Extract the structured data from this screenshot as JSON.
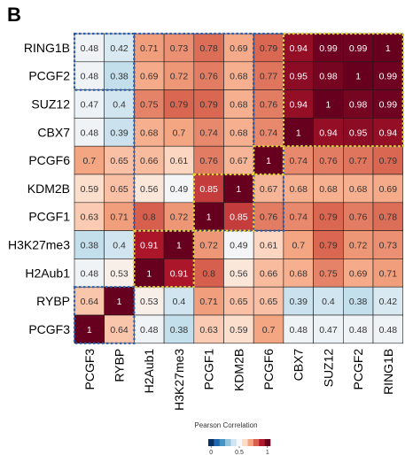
{
  "panel_label": "B",
  "chart_data": {
    "type": "heatmap",
    "rows": [
      "RING1B",
      "PCGF2",
      "SUZ12",
      "CBX7",
      "PCGF6",
      "KDM2B",
      "PCGF1",
      "H3K27me3",
      "H2Aub1",
      "RYBP",
      "PCGF3"
    ],
    "columns": [
      "PCGF3",
      "RYBP",
      "H2Aub1",
      "H3K27me3",
      "PCGF1",
      "KDM2B",
      "PCGF6",
      "CBX7",
      "SUZ12",
      "PCGF2",
      "RING1B"
    ],
    "values": [
      [
        0.48,
        0.42,
        0.71,
        0.73,
        0.78,
        0.69,
        0.79,
        0.94,
        0.99,
        0.99,
        1
      ],
      [
        0.48,
        0.38,
        0.69,
        0.72,
        0.76,
        0.68,
        0.77,
        0.95,
        0.98,
        1,
        0.99
      ],
      [
        0.47,
        0.4,
        0.75,
        0.79,
        0.79,
        0.68,
        0.76,
        0.94,
        1,
        0.98,
        0.99
      ],
      [
        0.48,
        0.39,
        0.68,
        0.7,
        0.74,
        0.68,
        0.74,
        1,
        0.94,
        0.95,
        0.94
      ],
      [
        0.7,
        0.65,
        0.66,
        0.61,
        0.76,
        0.67,
        1,
        0.74,
        0.76,
        0.77,
        0.79
      ],
      [
        0.59,
        0.65,
        0.56,
        0.49,
        0.85,
        1,
        0.67,
        0.68,
        0.68,
        0.68,
        0.69
      ],
      [
        0.63,
        0.71,
        0.8,
        0.72,
        1,
        0.85,
        0.76,
        0.74,
        0.79,
        0.76,
        0.78
      ],
      [
        0.38,
        0.4,
        0.91,
        1,
        0.72,
        0.49,
        0.61,
        0.7,
        0.79,
        0.72,
        0.73
      ],
      [
        0.48,
        0.53,
        1,
        0.91,
        0.8,
        0.56,
        0.66,
        0.68,
        0.75,
        0.69,
        0.71
      ],
      [
        0.64,
        1,
        0.53,
        0.4,
        0.71,
        0.65,
        0.65,
        0.39,
        0.4,
        0.38,
        0.42
      ],
      [
        1,
        0.64,
        0.48,
        0.38,
        0.63,
        0.59,
        0.7,
        0.48,
        0.47,
        0.48,
        0.48
      ]
    ],
    "value_range": [
      0,
      1
    ],
    "colorscale": [
      "#053061",
      "#2166ac",
      "#4393c3",
      "#92c5de",
      "#d1e5f0",
      "#f7f7f7",
      "#fddbc7",
      "#f4a582",
      "#d6604d",
      "#b2182b",
      "#67001f"
    ],
    "legend": {
      "title": "Pearson Correlation",
      "ticks": [
        "0",
        "0.5",
        "1"
      ],
      "placement": "bottom-center"
    },
    "blue_boxes": [
      [
        0,
        0,
        1,
        1
      ],
      [
        2,
        0,
        5,
        6
      ],
      [
        6,
        0,
        6,
        6
      ],
      [
        7,
        0,
        10,
        3
      ],
      [
        2,
        7,
        3,
        8
      ],
      [
        0,
        9,
        1,
        10
      ]
    ],
    "yellow_boxes": [
      [
        7,
        0,
        10,
        3
      ],
      [
        6,
        4,
        6,
        4
      ],
      [
        4,
        5,
        5,
        6
      ],
      [
        2,
        7,
        3,
        8
      ]
    ],
    "box_colors": {
      "blue": "#2c5fb0",
      "yellow": "#f2d230"
    }
  }
}
